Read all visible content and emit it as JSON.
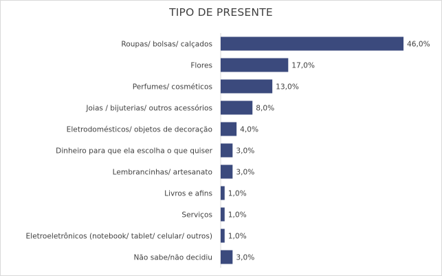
{
  "chart_data": {
    "type": "bar",
    "orientation": "horizontal",
    "title": "TIPO DE PRESENTE",
    "categories": [
      "Roupas/ bolsas/ calçados",
      "Flores",
      "Perfumes/ cosméticos",
      "Joias / bijuterias/ outros acessórios",
      "Eletrodomésticos/ objetos de decoração",
      "Dinheiro para que ela escolha o que quiser",
      "Lembrancinhas/ artesanato",
      "Livros e afins",
      "Serviços",
      "Eletroeletrônicos (notebook/ tablet/ celular/ outros)",
      "Não sabe/não decidiu"
    ],
    "values": [
      46.0,
      17.0,
      13.0,
      8.0,
      4.0,
      3.0,
      3.0,
      1.0,
      1.0,
      1.0,
      3.0
    ],
    "value_labels": [
      "46,0%",
      "17,0%",
      "13,0%",
      "8,0%",
      "4,0%",
      "3,0%",
      "3,0%",
      "1,0%",
      "1,0%",
      "1,0%",
      "3,0%"
    ],
    "xlim": [
      0,
      46
    ],
    "grid": false,
    "legend": "none",
    "bar_color": "#3b4a7d",
    "text_color": "#404040"
  }
}
